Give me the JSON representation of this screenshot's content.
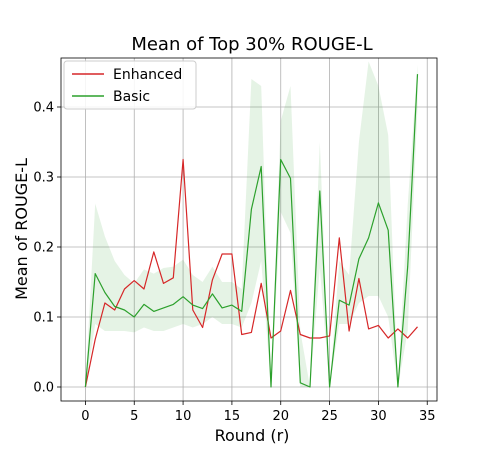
{
  "chart_data": {
    "type": "line",
    "title": "Mean of Top 30% ROUGE-L",
    "xlabel": "Round (r)",
    "ylabel": "Mean of ROUGE-L",
    "xlim": [
      -2.5,
      36
    ],
    "ylim": [
      -0.02,
      0.47
    ],
    "x_ticks": [
      0,
      5,
      10,
      15,
      20,
      25,
      30,
      35
    ],
    "y_ticks": [
      0.0,
      0.1,
      0.2,
      0.3,
      0.4
    ],
    "y_tick_labels": [
      "0.0",
      "0.1",
      "0.2",
      "0.3",
      "0.4"
    ],
    "grid": true,
    "legend_position": "upper-left",
    "x": [
      0,
      1,
      2,
      3,
      4,
      5,
      6,
      7,
      8,
      9,
      10,
      11,
      12,
      13,
      14,
      15,
      16,
      17,
      18,
      19,
      20,
      21,
      22,
      23,
      24,
      25,
      26,
      27,
      28,
      29,
      30,
      31,
      32,
      33,
      34
    ],
    "series": [
      {
        "name": "Enhanced",
        "color": "#d62728",
        "values": [
          0.0,
          0.068,
          0.12,
          0.11,
          0.14,
          0.152,
          0.14,
          0.193,
          0.148,
          0.156,
          0.325,
          0.11,
          0.085,
          0.153,
          0.19,
          0.19,
          0.075,
          0.078,
          0.148,
          0.07,
          0.08,
          0.138,
          0.075,
          0.07,
          0.07,
          0.073,
          0.213,
          0.08,
          0.155,
          0.083,
          0.088,
          0.07,
          0.083,
          0.07,
          0.086
        ]
      },
      {
        "name": "Basic",
        "color": "#2ca02c",
        "values": [
          0.0,
          0.162,
          0.135,
          0.115,
          0.11,
          0.1,
          0.118,
          0.108,
          0.113,
          0.118,
          0.129,
          0.117,
          0.112,
          0.133,
          0.113,
          0.117,
          0.108,
          0.254,
          0.315,
          0.0,
          0.325,
          0.298,
          0.006,
          0.0,
          0.28,
          0.0,
          0.124,
          0.117,
          0.183,
          0.213,
          0.263,
          0.224,
          0.0,
          0.172,
          0.447
        ],
        "band_color": "#2ca02c",
        "band_upper": [
          0.0,
          0.262,
          0.215,
          0.18,
          0.16,
          0.148,
          0.168,
          0.162,
          0.17,
          0.172,
          0.182,
          0.16,
          0.15,
          0.172,
          0.15,
          0.15,
          0.14,
          0.44,
          0.43,
          0.0,
          0.38,
          0.43,
          0.08,
          0.0,
          0.35,
          0.0,
          0.18,
          0.16,
          0.35,
          0.465,
          0.43,
          0.36,
          0.0,
          0.26,
          0.46
        ],
        "band_lower": [
          0.0,
          0.09,
          0.08,
          0.08,
          0.08,
          0.078,
          0.085,
          0.08,
          0.08,
          0.085,
          0.09,
          0.085,
          0.09,
          0.1,
          0.09,
          0.09,
          0.085,
          0.12,
          0.18,
          0.0,
          0.25,
          0.22,
          0.0,
          0.0,
          0.17,
          0.0,
          0.09,
          0.09,
          0.12,
          0.13,
          0.13,
          0.1,
          0.0,
          0.08,
          0.4
        ]
      }
    ]
  }
}
